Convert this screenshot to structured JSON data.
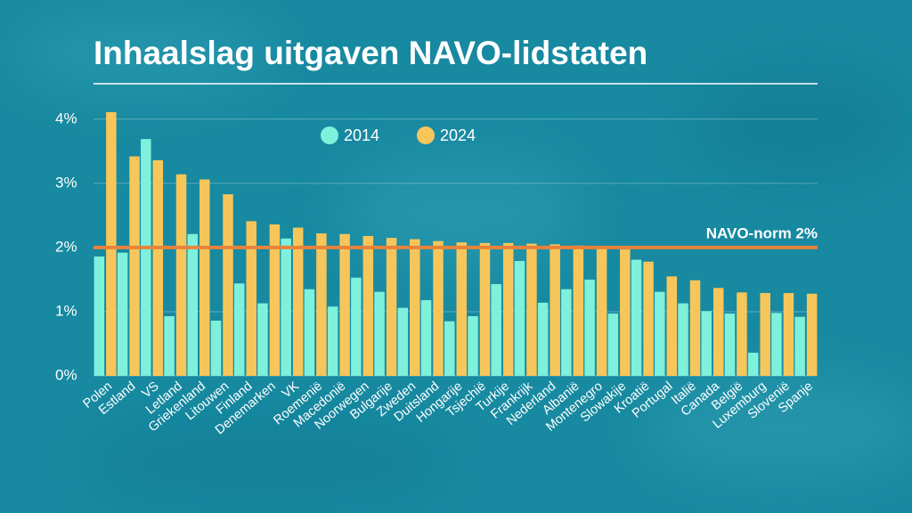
{
  "chart_data": {
    "type": "bar",
    "title": "Inhaalslag uitgaven NAVO-lidstaten",
    "categories": [
      "Polen",
      "Estland",
      "VS",
      "Letland",
      "Griekenland",
      "Litouwen",
      "Finland",
      "Denemarken",
      "VK",
      "Roemenië",
      "Macedonië",
      "Noorwegen",
      "Bulgarije",
      "Zweden",
      "Duitsland",
      "Hongarije",
      "Tsjechië",
      "Turkije",
      "Frankrijk",
      "Nederland",
      "Albanië",
      "Montenegro",
      "Slowakije",
      "Kroatië",
      "Portugal",
      "Italië",
      "Canada",
      "België",
      "Luxemburg",
      "Slovenië",
      "Spanje"
    ],
    "series": [
      {
        "name": "2014",
        "color": "#7ef0dc",
        "values": [
          1.86,
          1.92,
          3.69,
          0.93,
          2.21,
          0.86,
          1.44,
          1.13,
          2.14,
          1.35,
          1.08,
          1.53,
          1.31,
          1.06,
          1.18,
          0.85,
          0.93,
          1.43,
          1.79,
          1.14,
          1.35,
          1.5,
          0.97,
          1.81,
          1.31,
          1.13,
          1.01,
          0.97,
          0.36,
          0.98,
          0.92
        ]
      },
      {
        "name": "2024",
        "color": "#f7c65a",
        "values": [
          4.11,
          3.42,
          3.36,
          3.14,
          3.06,
          2.83,
          2.41,
          2.36,
          2.31,
          2.22,
          2.21,
          2.18,
          2.15,
          2.13,
          2.1,
          2.08,
          2.07,
          2.07,
          2.06,
          2.05,
          2.03,
          2.0,
          1.97,
          1.78,
          1.55,
          1.49,
          1.37,
          1.3,
          1.29,
          1.29,
          1.28
        ]
      }
    ],
    "ylim": [
      0,
      4.15
    ],
    "yticks": [
      {
        "value": 0,
        "label": "0%"
      },
      {
        "value": 1,
        "label": "1%"
      },
      {
        "value": 2,
        "label": "2%"
      },
      {
        "value": 3,
        "label": "3%"
      },
      {
        "value": 4,
        "label": "4%"
      }
    ],
    "grid": true,
    "reference_line": {
      "value": 2,
      "label": "NAVO-norm 2%",
      "color": "#e8833a"
    }
  }
}
